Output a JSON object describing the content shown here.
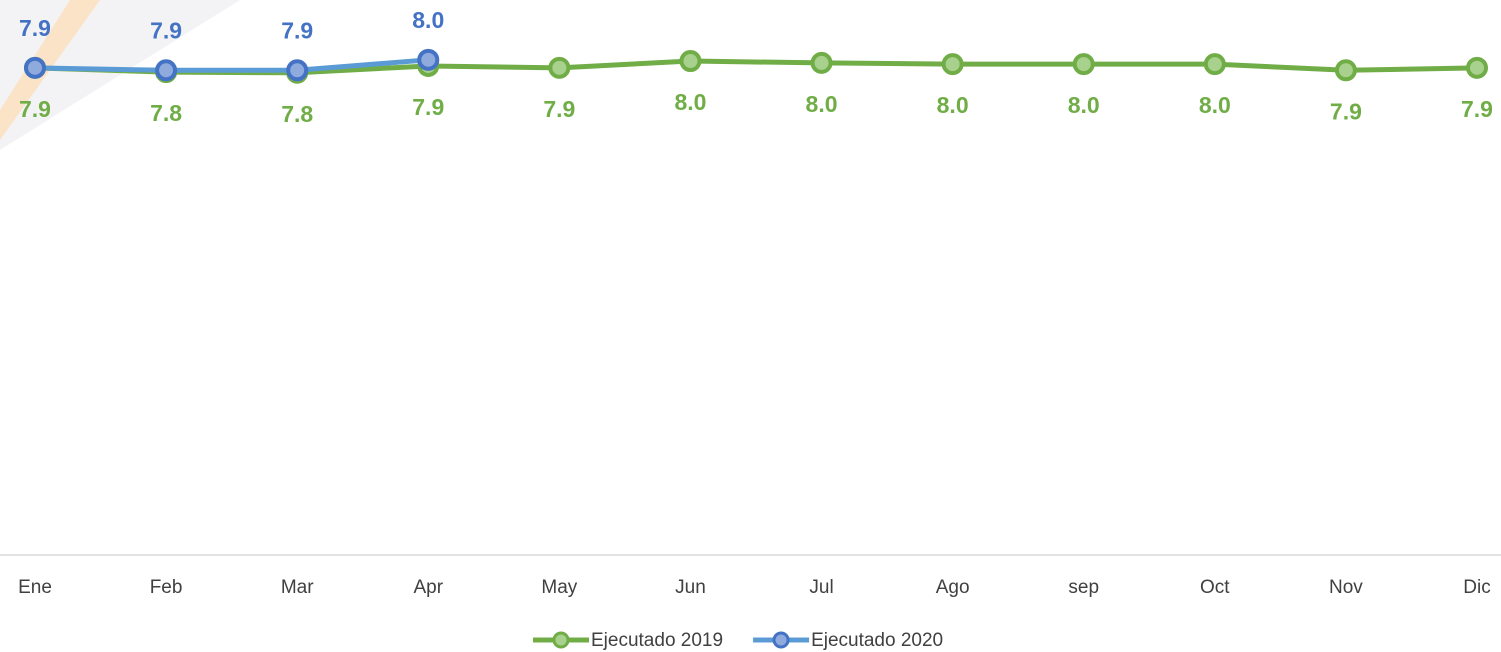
{
  "chart_data": {
    "type": "line",
    "categories": [
      "Ene",
      "Feb",
      "Mar",
      "Apr",
      "May",
      "Jun",
      "Jul",
      "Ago",
      "sep",
      "Oct",
      "Nov",
      "Dic"
    ],
    "series": [
      {
        "name": "Ejecutado 2019",
        "color": "#70ad47",
        "values": [
          7.9,
          7.83,
          7.82,
          7.93,
          7.9,
          8.01,
          7.98,
          7.96,
          7.96,
          7.96,
          7.86,
          7.9
        ],
        "value_labels": [
          "7.9",
          "7.8",
          "7.8",
          "7.9",
          "7.9",
          "8.0",
          "8.0",
          "8.0",
          "8.0",
          "8.0",
          "7.9",
          "7.9"
        ]
      },
      {
        "name": "Ejecutado 2020",
        "color": "#4472c4",
        "values": [
          7.9,
          7.86,
          7.86,
          8.03,
          null,
          null,
          null,
          null,
          null,
          null,
          null,
          null
        ],
        "value_labels": [
          "7.9",
          "7.9",
          "7.9",
          "8.0",
          null,
          null,
          null,
          null,
          null,
          null,
          null,
          null
        ]
      }
    ],
    "ylim": [
      0,
      9
    ],
    "legend": "bottom"
  }
}
